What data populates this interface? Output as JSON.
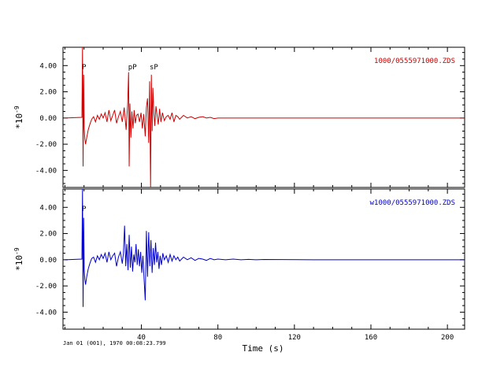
{
  "chart_data": {
    "type": "line",
    "xlabel": "Time (s)",
    "xlim": [
      -1,
      209
    ],
    "x_ticks": [
      40,
      80,
      120,
      160,
      200
    ],
    "x_tick_labels": [
      "40",
      "80",
      "120",
      "160",
      "200"
    ],
    "date_label": "Jan 01 (001), 1970 00:08:23.799",
    "panels": [
      {
        "name": "1000/0555971000.ZDS",
        "color": "#cc0000",
        "ylabel": "*10^-9",
        "ylim": [
          -5.3,
          5.4
        ],
        "y_ticks": [
          4,
          2,
          0,
          -2,
          -4
        ],
        "y_tick_labels": [
          "4.00",
          "2.00",
          "0.00",
          "-2.00",
          "-4.00"
        ],
        "phases": [
          {
            "label": "P",
            "t": 9.3
          },
          {
            "label": "pP",
            "t": 33.5
          },
          {
            "label": "sP",
            "t": 44.7
          }
        ],
        "trace": {
          "t": [
            0,
            8.9,
            9.2,
            9.5,
            9.8,
            10.1,
            10.4,
            10.8,
            11.4,
            12.2,
            13,
            14,
            15,
            16,
            17,
            18,
            19,
            20,
            21,
            22,
            23,
            24,
            25,
            26,
            27,
            28,
            29,
            30,
            31,
            32,
            32.8,
            33.3,
            33.6,
            34,
            34.5,
            35,
            35.6,
            36.2,
            36.8,
            37.4,
            38.2,
            39,
            39.8,
            40.5,
            41.2,
            42,
            42.6,
            43.2,
            43.8,
            44.3,
            44.8,
            45.2,
            45.6,
            46,
            46.5,
            47,
            47.6,
            48.2,
            48.8,
            49.5,
            50.2,
            51,
            52,
            53,
            54,
            55,
            56,
            57,
            58,
            59,
            60,
            62,
            64,
            66,
            68,
            70,
            72,
            74,
            76,
            78,
            80,
            84,
            90,
            100,
            130,
            170,
            209
          ],
          "y": [
            0,
            0.05,
            5.4,
            -3.7,
            3.3,
            -0.8,
            -1.6,
            -2.0,
            -1.5,
            -0.9,
            -0.5,
            -0.1,
            0.1,
            -0.3,
            0.2,
            -0.1,
            0.3,
            0.0,
            0.4,
            -0.3,
            0.6,
            -0.2,
            0.2,
            0.6,
            -0.4,
            0.1,
            0.5,
            -0.3,
            0.8,
            -0.9,
            1.0,
            3.5,
            -3.7,
            1.1,
            -1.5,
            0.5,
            -0.8,
            0.6,
            -0.4,
            0.2,
            0.3,
            -0.3,
            0.4,
            -0.8,
            0.3,
            -1.4,
            0.8,
            1.5,
            -1.9,
            2.8,
            -5.3,
            3.3,
            -1.0,
            2.3,
            0.4,
            -0.6,
            0.9,
            0.2,
            -0.5,
            0.7,
            -0.3,
            0.4,
            -0.2,
            0.1,
            0.2,
            -0.1,
            0.4,
            -0.3,
            0.2,
            0.1,
            -0.1,
            0.2,
            0.0,
            0.1,
            -0.05,
            0.05,
            0.1,
            0.0,
            0.05,
            -0.05,
            0.0,
            0.0,
            0.0,
            0.0,
            0.0,
            0.0,
            0.0
          ]
        }
      },
      {
        "name": "w1000/0555971000.ZDS",
        "color": "#0000cc",
        "ylabel": "*10^-9",
        "ylim": [
          -5.3,
          5.4
        ],
        "y_ticks": [
          4,
          2,
          0,
          -2,
          -4
        ],
        "y_tick_labels": [
          "4.00",
          "2.00",
          "0.00",
          "-2.00",
          "-4.00"
        ],
        "phases": [
          {
            "label": "P",
            "t": 9.3
          }
        ],
        "trace": {
          "t": [
            0,
            8.9,
            9.2,
            9.5,
            9.8,
            10.1,
            10.4,
            10.8,
            11.4,
            12.2,
            13,
            14,
            15,
            16,
            17,
            18,
            19,
            20,
            21,
            22,
            23,
            24,
            25,
            26,
            27,
            28,
            29,
            30,
            30.6,
            31.2,
            31.8,
            32.4,
            33,
            33.6,
            34.2,
            34.8,
            35.4,
            36,
            36.6,
            37.2,
            37.8,
            38.4,
            39,
            39.6,
            40.2,
            40.8,
            41.4,
            42,
            42.6,
            43.2,
            43.8,
            44.4,
            45,
            45.6,
            46.2,
            46.8,
            47.4,
            48,
            48.6,
            49.2,
            49.8,
            50.5,
            51.2,
            52,
            53,
            54,
            55,
            56,
            57,
            58,
            59,
            60,
            62,
            64,
            66,
            68,
            70,
            72,
            74,
            76,
            78,
            80,
            84,
            88,
            92,
            96,
            100,
            104,
            130,
            170,
            209
          ],
          "y": [
            0,
            0.05,
            5.4,
            -3.6,
            3.2,
            -0.8,
            -1.5,
            -1.9,
            -1.3,
            -0.7,
            -0.3,
            0.1,
            0.2,
            -0.2,
            0.3,
            0.0,
            0.4,
            0.1,
            0.5,
            -0.2,
            0.6,
            0.0,
            0.3,
            0.5,
            -0.5,
            0.2,
            0.6,
            -0.3,
            0.5,
            2.6,
            -0.5,
            1.2,
            -0.8,
            1.9,
            -0.6,
            1.0,
            -0.9,
            0.4,
            -0.2,
            1.2,
            -0.4,
            0.8,
            -0.5,
            0.6,
            -1.0,
            0.3,
            -1.5,
            -3.1,
            2.2,
            -1.3,
            2.1,
            -0.5,
            1.5,
            -1.0,
            0.9,
            -0.4,
            1.3,
            -0.2,
            0.6,
            -0.7,
            0.3,
            -0.4,
            0.5,
            0.0,
            0.3,
            -0.2,
            0.4,
            -0.1,
            0.3,
            0.0,
            0.2,
            -0.1,
            0.2,
            0.0,
            0.15,
            -0.05,
            0.1,
            0.05,
            -0.05,
            0.1,
            0.0,
            0.05,
            0.0,
            0.05,
            0.0,
            0.03,
            0.0,
            0.02,
            0.0,
            0.0,
            0.0
          ]
        }
      }
    ]
  }
}
